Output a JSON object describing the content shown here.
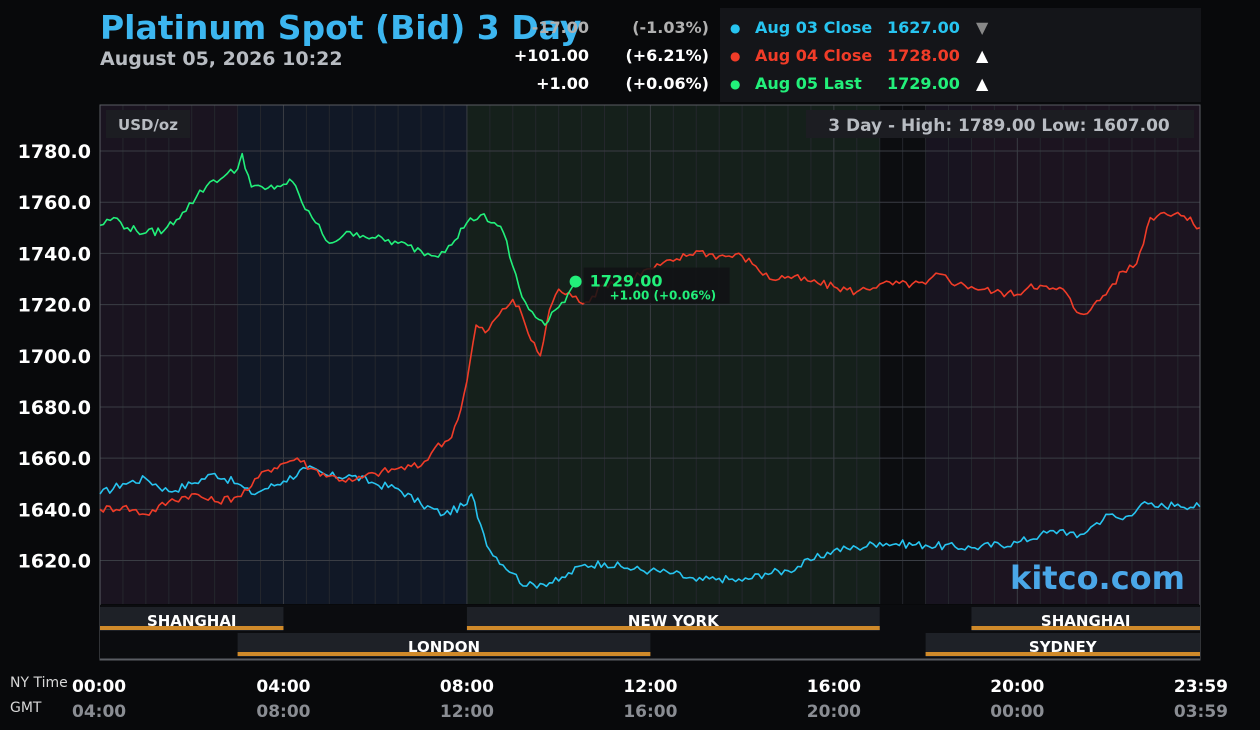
{
  "header": {
    "title": "Platinum Spot (Bid) 3 Day",
    "subtitle": "August 05, 2026 10:22"
  },
  "summary": [
    {
      "label": "Aug 03 Close",
      "price": "1627.00",
      "arrow": "▼",
      "change": "-17.00",
      "pct": "(-1.03%)",
      "color": "#27c4f0",
      "arrow_color": "#888888",
      "change_color": "#b0b0b0"
    },
    {
      "label": "Aug 04 Close",
      "price": "1728.00",
      "arrow": "▲",
      "change": "+101.00",
      "pct": "(+6.21%)",
      "color": "#f03c28",
      "arrow_color": "#ffffff",
      "change_color": "#ffffff"
    },
    {
      "label": "Aug 05 Last",
      "price": "1729.00",
      "arrow": "▲",
      "change": "+1.00",
      "pct": "(+0.06%)",
      "color": "#22f07a",
      "arrow_color": "#ffffff",
      "change_color": "#ffffff"
    }
  ],
  "footer": {
    "ny_label": "NY Time",
    "gmt_label": "GMT"
  },
  "chart_data": {
    "type": "line",
    "unit_label": "USD/oz",
    "range_text": "3 Day - High: 1789.00  Low: 1607.00",
    "watermark": "kitco.com",
    "ylim": [
      1603,
      1798
    ],
    "xlim": [
      0,
      23.983
    ],
    "y_ticks": [
      "1780.0",
      "1760.0",
      "1740.0",
      "1720.0",
      "1700.0",
      "1680.0",
      "1660.0",
      "1640.0",
      "1620.0"
    ],
    "x_ticks": [
      {
        "hour": 0,
        "ny": "00:00",
        "gmt": "04:00"
      },
      {
        "hour": 4,
        "ny": "04:00",
        "gmt": "08:00"
      },
      {
        "hour": 8,
        "ny": "08:00",
        "gmt": "12:00"
      },
      {
        "hour": 12,
        "ny": "12:00",
        "gmt": "16:00"
      },
      {
        "hour": 16,
        "ny": "16:00",
        "gmt": "20:00"
      },
      {
        "hour": 20,
        "ny": "20:00",
        "gmt": "00:00"
      },
      {
        "hour": 23.983,
        "ny": "23:59",
        "gmt": "03:59"
      }
    ],
    "sessions": [
      {
        "name": "SHANGHAI",
        "start": 0,
        "end": 4,
        "row": 0
      },
      {
        "name": "NEW YORK",
        "start": 8,
        "end": 17,
        "row": 0
      },
      {
        "name": "SHANGHAI",
        "start": 19,
        "end": 23.983,
        "row": 0
      },
      {
        "name": "LONDON",
        "start": 3,
        "end": 12,
        "row": 1
      },
      {
        "name": "SYDNEY",
        "start": 18,
        "end": 23.983,
        "row": 1
      }
    ],
    "last_point": {
      "x": 10.37,
      "y": 1729,
      "label": "1729.00",
      "change": "+1.00 (+0.06%)"
    },
    "series": [
      {
        "color": "#27c4f0",
        "points": [
          [
            0,
            1646
          ],
          [
            0.5,
            1650
          ],
          [
            1,
            1652
          ],
          [
            1.5,
            1647
          ],
          [
            2,
            1650
          ],
          [
            2.5,
            1654
          ],
          [
            3,
            1650
          ],
          [
            3.3,
            1646
          ],
          [
            3.6,
            1648
          ],
          [
            4,
            1651
          ],
          [
            4.5,
            1656
          ],
          [
            5,
            1653
          ],
          [
            5.5,
            1653
          ],
          [
            6,
            1650
          ],
          [
            6.5,
            1648
          ],
          [
            7,
            1642
          ],
          [
            7.5,
            1638
          ],
          [
            8,
            1642
          ],
          [
            8.1,
            1646
          ],
          [
            8.3,
            1634
          ],
          [
            8.5,
            1624
          ],
          [
            9,
            1615
          ],
          [
            9.3,
            1610
          ],
          [
            9.6,
            1611
          ],
          [
            10,
            1612
          ],
          [
            10.5,
            1618
          ],
          [
            11,
            1619
          ],
          [
            11.5,
            1617
          ],
          [
            12,
            1616
          ],
          [
            12.5,
            1615
          ],
          [
            13,
            1612
          ],
          [
            13.5,
            1613
          ],
          [
            14,
            1612
          ],
          [
            14.5,
            1615
          ],
          [
            15,
            1616
          ],
          [
            15.5,
            1620
          ],
          [
            16,
            1624
          ],
          [
            16.5,
            1625
          ],
          [
            17,
            1627
          ],
          [
            18,
            1626
          ],
          [
            19,
            1625
          ],
          [
            20,
            1627
          ],
          [
            20.5,
            1630
          ],
          [
            21,
            1632
          ],
          [
            21.3,
            1629
          ],
          [
            21.6,
            1633
          ],
          [
            22,
            1638
          ],
          [
            22.3,
            1636
          ],
          [
            22.7,
            1642
          ],
          [
            23,
            1641
          ],
          [
            23.5,
            1642
          ],
          [
            23.98,
            1641
          ]
        ]
      },
      {
        "color": "#f03c28",
        "points": [
          [
            0,
            1640
          ],
          [
            0.5,
            1641
          ],
          [
            1,
            1638
          ],
          [
            1.5,
            1643
          ],
          [
            2,
            1646
          ],
          [
            2.5,
            1643
          ],
          [
            3,
            1645
          ],
          [
            3.3,
            1649
          ],
          [
            3.6,
            1655
          ],
          [
            4,
            1658
          ],
          [
            4.3,
            1660
          ],
          [
            4.6,
            1656
          ],
          [
            5,
            1653
          ],
          [
            5.5,
            1651
          ],
          [
            6,
            1654
          ],
          [
            6.5,
            1656
          ],
          [
            7,
            1657
          ],
          [
            7.3,
            1664
          ],
          [
            7.6,
            1667
          ],
          [
            7.8,
            1675
          ],
          [
            8,
            1690
          ],
          [
            8.2,
            1712
          ],
          [
            8.4,
            1709
          ],
          [
            8.7,
            1716
          ],
          [
            9,
            1722
          ],
          [
            9.2,
            1716
          ],
          [
            9.4,
            1706
          ],
          [
            9.6,
            1700
          ],
          [
            9.8,
            1718
          ],
          [
            10,
            1726
          ],
          [
            10.3,
            1723
          ],
          [
            10.6,
            1721
          ],
          [
            11,
            1728
          ],
          [
            11.5,
            1730
          ],
          [
            12,
            1734
          ],
          [
            12.5,
            1737
          ],
          [
            13,
            1741
          ],
          [
            13.5,
            1739
          ],
          [
            14,
            1739
          ],
          [
            14.3,
            1735
          ],
          [
            14.6,
            1730
          ],
          [
            15,
            1731
          ],
          [
            15.5,
            1729
          ],
          [
            16,
            1727
          ],
          [
            16.5,
            1725
          ],
          [
            17,
            1728
          ],
          [
            18,
            1728
          ],
          [
            18.3,
            1732
          ],
          [
            18.7,
            1728
          ],
          [
            19,
            1727
          ],
          [
            19.5,
            1725
          ],
          [
            20,
            1724
          ],
          [
            20.3,
            1728
          ],
          [
            20.7,
            1726
          ],
          [
            21,
            1726
          ],
          [
            21.3,
            1717
          ],
          [
            21.6,
            1718
          ],
          [
            22,
            1726
          ],
          [
            22.3,
            1733
          ],
          [
            22.6,
            1736
          ],
          [
            22.9,
            1754
          ],
          [
            23.2,
            1756
          ],
          [
            23.5,
            1756
          ],
          [
            23.98,
            1750
          ]
        ]
      },
      {
        "color": "#22f07a",
        "points": [
          [
            0,
            1751
          ],
          [
            0.3,
            1754
          ],
          [
            0.6,
            1750
          ],
          [
            1,
            1748
          ],
          [
            1.4,
            1749
          ],
          [
            1.8,
            1756
          ],
          [
            2.1,
            1762
          ],
          [
            2.4,
            1768
          ],
          [
            2.7,
            1770
          ],
          [
            3,
            1773
          ],
          [
            3.1,
            1779
          ],
          [
            3.3,
            1766
          ],
          [
            3.6,
            1765
          ],
          [
            4,
            1767
          ],
          [
            4.2,
            1768
          ],
          [
            4.4,
            1760
          ],
          [
            4.7,
            1752
          ],
          [
            5,
            1744
          ],
          [
            5.3,
            1747
          ],
          [
            5.6,
            1748
          ],
          [
            6,
            1746
          ],
          [
            6.5,
            1744
          ],
          [
            7,
            1741
          ],
          [
            7.3,
            1739
          ],
          [
            7.6,
            1743
          ],
          [
            8,
            1752
          ],
          [
            8.3,
            1755
          ],
          [
            8.6,
            1752
          ],
          [
            8.8,
            1748
          ],
          [
            9,
            1735
          ],
          [
            9.2,
            1723
          ],
          [
            9.5,
            1715
          ],
          [
            9.7,
            1712
          ],
          [
            10,
            1719
          ],
          [
            10.2,
            1724
          ],
          [
            10.37,
            1729
          ]
        ]
      }
    ]
  }
}
